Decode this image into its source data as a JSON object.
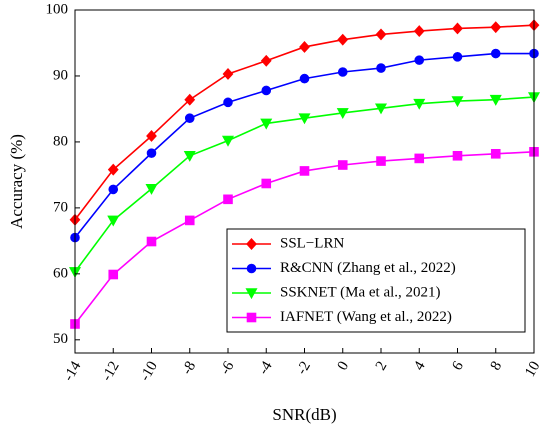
{
  "chart_data": {
    "type": "line",
    "xlabel": "SNR(dB)",
    "ylabel": "Accuracy (%)",
    "x": [
      -14,
      -12,
      -10,
      -8,
      -6,
      -4,
      -2,
      0,
      2,
      4,
      6,
      8,
      10
    ],
    "x_tick_labels": [
      "-14",
      "-12",
      "-10",
      "-8",
      "-6",
      "-4",
      "-2",
      "0",
      "2",
      "4",
      "6",
      "8",
      "10"
    ],
    "y_ticks": [
      50,
      60,
      70,
      80,
      90,
      100
    ],
    "xlim": [
      -14,
      10
    ],
    "ylim": [
      48,
      100
    ],
    "grid": false,
    "legend_position": "lower-right",
    "series": [
      {
        "name": "SSL−LRN",
        "color": "#ff0000",
        "marker": "diamond",
        "values": [
          68.2,
          75.8,
          80.9,
          86.4,
          90.3,
          92.3,
          94.4,
          95.5,
          96.3,
          96.8,
          97.2,
          97.4,
          97.7
        ]
      },
      {
        "name": "R&CNN (Zhang et al., 2022)",
        "color": "#0000ff",
        "marker": "circle",
        "values": [
          65.5,
          72.8,
          78.3,
          83.6,
          86.0,
          87.8,
          89.6,
          90.6,
          91.2,
          92.4,
          92.9,
          93.4,
          93.4
        ]
      },
      {
        "name": "SSKNET (Ma et al., 2021)",
        "color": "#00ff00",
        "marker": "triangle-down",
        "values": [
          60.3,
          68.1,
          72.9,
          77.9,
          80.2,
          82.8,
          83.6,
          84.4,
          85.1,
          85.8,
          86.2,
          86.4,
          86.8
        ]
      },
      {
        "name": "IAFNET (Wang et al., 2022)",
        "color": "#ff00ff",
        "marker": "square",
        "values": [
          52.4,
          59.9,
          64.9,
          68.1,
          71.3,
          73.7,
          75.6,
          76.5,
          77.1,
          77.5,
          77.9,
          78.2,
          78.5
        ]
      }
    ]
  }
}
